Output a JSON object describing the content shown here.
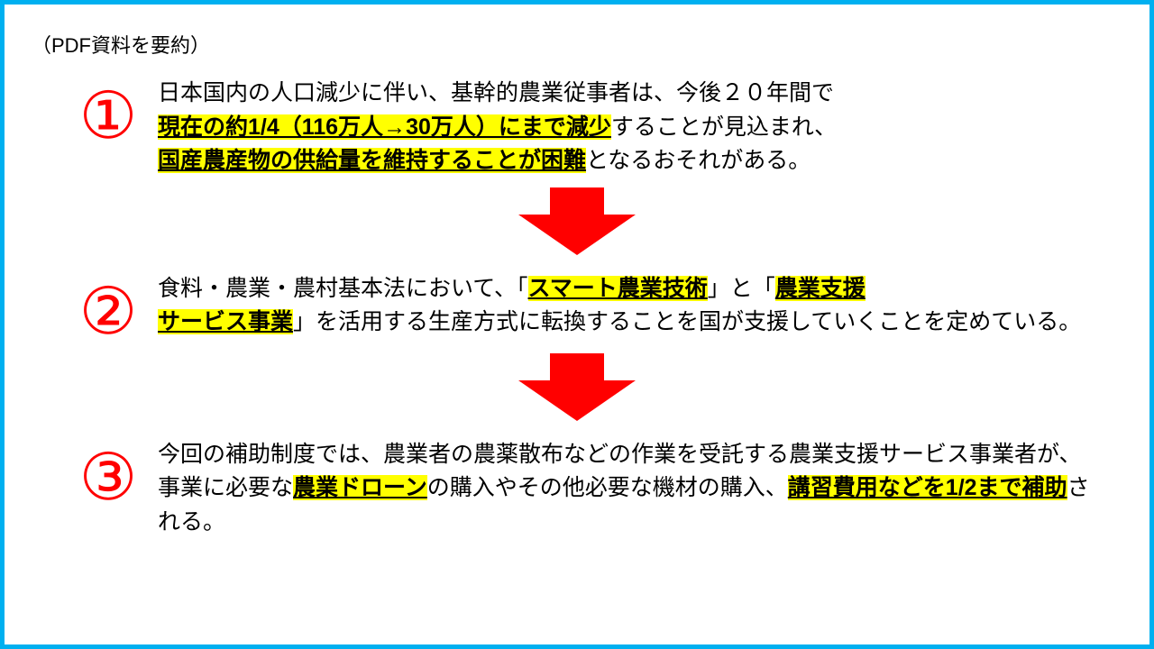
{
  "header": "（PDF資料を要約）",
  "items": [
    {
      "num": "①",
      "segments": [
        {
          "t": "日本国内の人口減少に伴い、基幹的農業従事者は、今後２０年間で",
          "hl": false,
          "br": true
        },
        {
          "t": "現在の約1/4（116万人→30万人）にまで減少",
          "hl": true,
          "br": false
        },
        {
          "t": "することが見込まれ、",
          "hl": false,
          "br": true
        },
        {
          "t": "国産農産物の供給量を維持することが困難",
          "hl": true,
          "br": false
        },
        {
          "t": "となるおそれがある。",
          "hl": false,
          "br": false
        }
      ]
    },
    {
      "num": "②",
      "segments": [
        {
          "t": "食料・農業・農村基本法において、「",
          "hl": false,
          "br": false
        },
        {
          "t": "スマート農業技術",
          "hl": true,
          "br": false
        },
        {
          "t": "」と「",
          "hl": false,
          "br": false
        },
        {
          "t": "農業支援",
          "hl": true,
          "br": true
        },
        {
          "t": "サービス事業",
          "hl": true,
          "br": false
        },
        {
          "t": "」を活用する生産方式に転換することを国が支援していくことを定めている。",
          "hl": false,
          "br": false
        }
      ]
    },
    {
      "num": "③",
      "segments": [
        {
          "t": "今回の補助制度では、農業者の農薬散布などの作業を受託する農業支援サービス事業者が、事業に必要な",
          "hl": false,
          "br": false
        },
        {
          "t": "農業ドローン",
          "hl": true,
          "br": false
        },
        {
          "t": "の購入やその他必要な機材の購入、",
          "hl": false,
          "br": false
        },
        {
          "t": "講習費用などを1/2まで補助",
          "hl": true,
          "br": false
        },
        {
          "t": "される。",
          "hl": false,
          "br": false
        }
      ]
    }
  ],
  "colors": {
    "border": "#00b0f0",
    "highlight": "#ffff00",
    "number": "#ff0000",
    "arrow": "#ff0000",
    "text": "#000000",
    "background": "#ffffff"
  },
  "arrow": {
    "width": 130,
    "height": 75
  }
}
